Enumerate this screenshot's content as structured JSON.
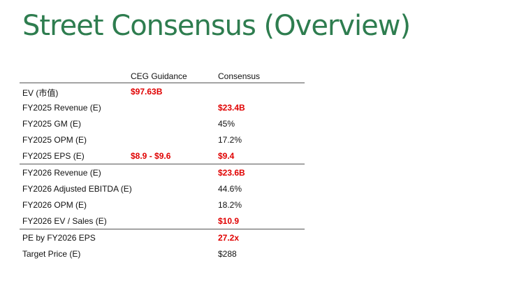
{
  "title": "Street Consensus (Overview)",
  "colors": {
    "title": "#2e7d4f",
    "highlight": "#e00000"
  },
  "table": {
    "headers": {
      "label": "",
      "guidance": "CEG Guidance",
      "consensus": "Consensus"
    },
    "rows": [
      {
        "label": "EV (市值)",
        "guidance": "$97.63B",
        "consensus": "",
        "guidance_red": true,
        "consensus_red": false,
        "separator": false
      },
      {
        "label": "FY2025 Revenue (E)",
        "guidance": "",
        "consensus": "$23.4B",
        "guidance_red": false,
        "consensus_red": true,
        "separator": false
      },
      {
        "label": "FY2025 GM (E)",
        "guidance": "",
        "consensus": "45%",
        "guidance_red": false,
        "consensus_red": false,
        "separator": false
      },
      {
        "label": "FY2025 OPM (E)",
        "guidance": "",
        "consensus": "17.2%",
        "guidance_red": false,
        "consensus_red": false,
        "separator": false
      },
      {
        "label": "FY2025 EPS (E)",
        "guidance": "$8.9 - $9.6",
        "consensus": "$9.4",
        "guidance_red": true,
        "consensus_red": true,
        "separator": true
      },
      {
        "label": "FY2026 Revenue (E)",
        "guidance": "",
        "consensus": "$23.6B",
        "guidance_red": false,
        "consensus_red": true,
        "separator": false
      },
      {
        "label": "FY2026 Adjusted EBITDA (E)",
        "guidance": "",
        "consensus": "44.6%",
        "guidance_red": false,
        "consensus_red": false,
        "separator": false
      },
      {
        "label": "FY2026 OPM (E)",
        "guidance": "",
        "consensus": "18.2%",
        "guidance_red": false,
        "consensus_red": false,
        "separator": false
      },
      {
        "label": "FY2026 EV / Sales (E)",
        "guidance": "",
        "consensus": "$10.9",
        "guidance_red": false,
        "consensus_red": true,
        "separator": true
      },
      {
        "label": "PE by FY2026 EPS",
        "guidance": "",
        "consensus": "27.2x",
        "guidance_red": false,
        "consensus_red": true,
        "separator": false
      },
      {
        "label": "Target Price (E)",
        "guidance": "",
        "consensus": "$288",
        "guidance_red": false,
        "consensus_red": false,
        "separator": false
      }
    ]
  }
}
